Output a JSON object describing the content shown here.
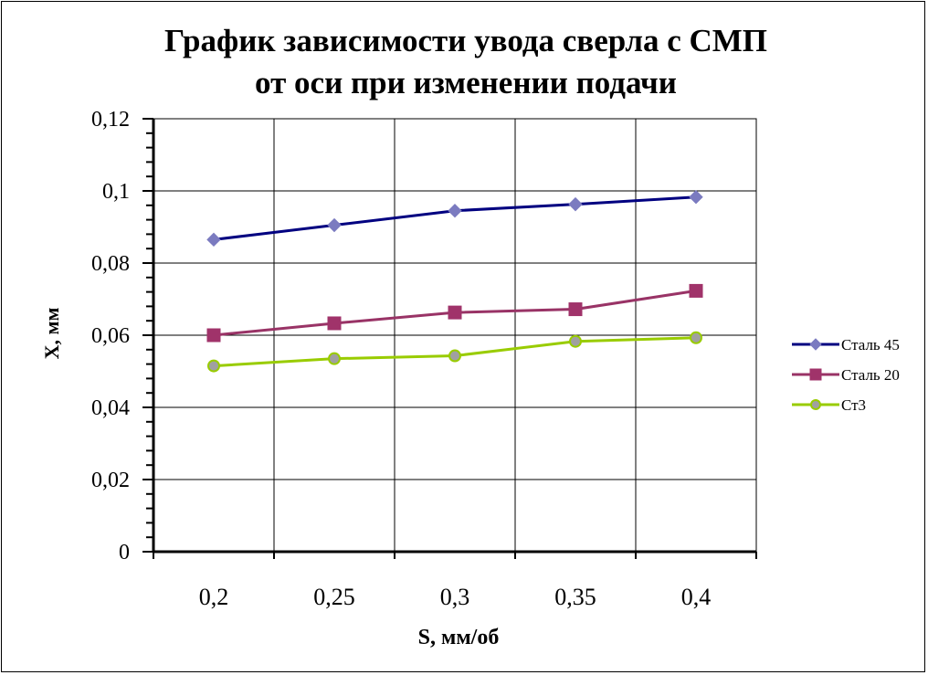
{
  "chart_data": {
    "type": "line",
    "title_line1": "График зависимости увода сверла с СМП",
    "title_line2": "от оси при изменении подачи",
    "xlabel": "S, мм/об",
    "ylabel": "X, мм",
    "categories": [
      "0,2",
      "0,25",
      "0,3",
      "0,35",
      "0,4"
    ],
    "ylim": [
      0,
      0.12
    ],
    "yticks": [
      "0",
      "0,02",
      "0,04",
      "0,06",
      "0,08",
      "0,1",
      "0,12"
    ],
    "grid": true,
    "legend_position": "right",
    "series": [
      {
        "name": "Сталь 45",
        "values": [
          0.0865,
          0.0905,
          0.0945,
          0.0963,
          0.0983
        ],
        "color": "#000080",
        "marker_color": "#7B7BC0",
        "marker": "diamond"
      },
      {
        "name": "Сталь 20",
        "values": [
          0.06,
          0.0633,
          0.0663,
          0.0672,
          0.0723
        ],
        "color": "#993366",
        "marker_color": "#A0336A",
        "marker": "square"
      },
      {
        "name": "Ст3",
        "values": [
          0.0515,
          0.0535,
          0.0543,
          0.0583,
          0.0593
        ],
        "color": "#99CC00",
        "marker_color": "#A0A0A0",
        "marker": "circle"
      }
    ]
  }
}
